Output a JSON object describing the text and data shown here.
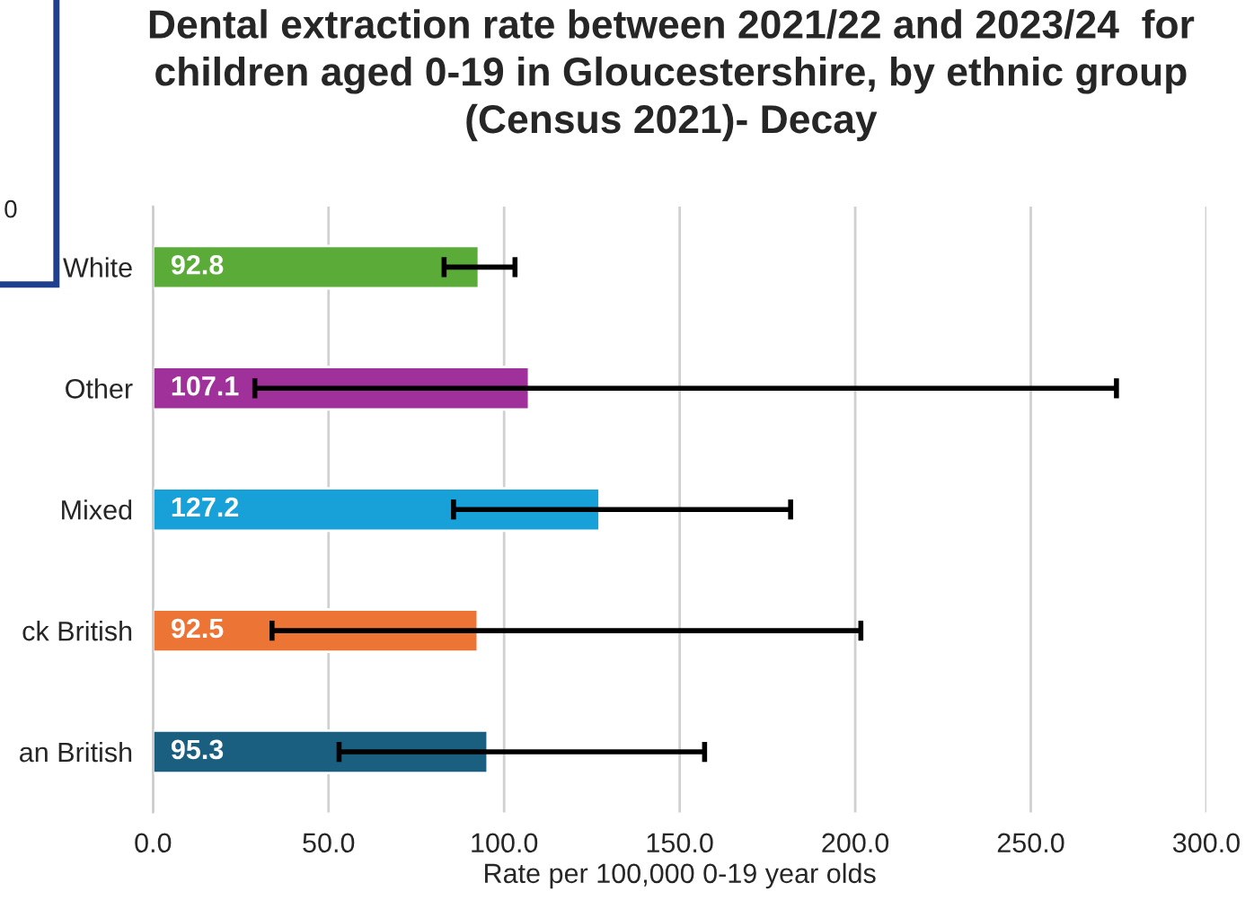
{
  "chart_data": {
    "type": "bar",
    "orientation": "horizontal",
    "title": "Dental extraction rate between 2021/22 and 2023/24  for\nchildren aged 0-19 in Gloucestershire, by ethnic group\n(Census 2021)- Decay",
    "xlabel": "Rate per 100,000 0-19 year olds",
    "categories": [
      "White",
      "Other",
      "Mixed",
      "ck British",
      "an British"
    ],
    "values": [
      92.8,
      107.1,
      127.2,
      92.5,
      95.3
    ],
    "colors": [
      "#5aab38",
      "#a0309a",
      "#18a0d8",
      "#ec7434",
      "#1a5e80"
    ],
    "errors": [
      [
        82.9,
        103.1
      ],
      [
        29.0,
        274.4
      ],
      [
        85.6,
        181.6
      ],
      [
        33.9,
        201.6
      ],
      [
        53.0,
        157.1
      ]
    ],
    "data_labels": true,
    "xlim": [
      0,
      300
    ],
    "xticks": [
      {
        "value": 0,
        "label": "0.0"
      },
      {
        "value": 50,
        "label": "50.0"
      },
      {
        "value": 100,
        "label": "100.0"
      },
      {
        "value": 150,
        "label": "150.0"
      },
      {
        "value": 200,
        "label": "200.0"
      },
      {
        "value": 250,
        "label": "250.0"
      },
      {
        "value": 300,
        "label": "300.0"
      }
    ],
    "grid": "x",
    "annotations": [
      "0"
    ]
  }
}
